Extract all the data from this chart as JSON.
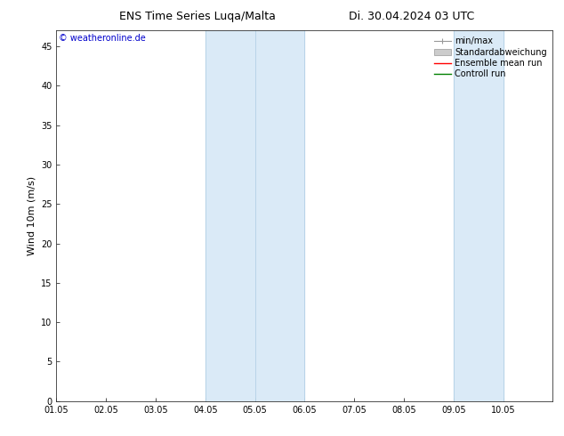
{
  "title_left": "ENS Time Series Luqa/Malta",
  "title_right": "Di. 30.04.2024 03 UTC",
  "ylabel": "Wind 10m (m/s)",
  "watermark": "© weatheronline.de",
  "watermark_color": "#0000cc",
  "xlim_left": 0,
  "xlim_right": 10,
  "ylim_bottom": 0,
  "ylim_top": 47,
  "yticks": [
    0,
    5,
    10,
    15,
    20,
    25,
    30,
    35,
    40,
    45
  ],
  "xtick_labels": [
    "01.05",
    "02.05",
    "03.05",
    "04.05",
    "05.05",
    "06.05",
    "07.05",
    "08.05",
    "09.05",
    "10.05"
  ],
  "xtick_positions": [
    0,
    1,
    2,
    3,
    4,
    5,
    6,
    7,
    8,
    9
  ],
  "background_color": "#ffffff",
  "plot_bg_color": "#ffffff",
  "shaded_regions": [
    {
      "xmin": 3,
      "xmax": 5,
      "color": "#daeaf7"
    },
    {
      "xmin": 8,
      "xmax": 9,
      "color": "#daeaf7"
    }
  ],
  "shade_edge_color": "#b8d4e8",
  "legend_entries": [
    {
      "label": "min/max",
      "color": "#999999",
      "type": "errorbar"
    },
    {
      "label": "Standardabweichung",
      "color": "#cccccc",
      "type": "rect"
    },
    {
      "label": "Ensemble mean run",
      "color": "#ff0000",
      "type": "line"
    },
    {
      "label": "Controll run",
      "color": "#008000",
      "type": "line"
    }
  ],
  "title_fontsize": 9,
  "axis_label_fontsize": 8,
  "tick_fontsize": 7,
  "watermark_fontsize": 7,
  "legend_fontsize": 7
}
